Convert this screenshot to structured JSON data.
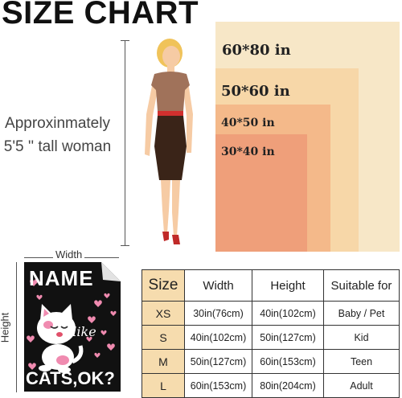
{
  "title": "SIZE CHART",
  "sizes_visual": [
    "60*80 in",
    "50*60 in",
    "40*50 in",
    "30*40 in"
  ],
  "woman_note": [
    "Approxinmately",
    "5'5 '' tall woman"
  ],
  "dimension_labels": {
    "width": "Width",
    "height": "Height"
  },
  "blanket_text": {
    "line1": "NAME",
    "line2": "like",
    "line3": "CATS,OK?"
  },
  "table": {
    "headers": [
      "Size",
      "Width",
      "Height",
      "Suitable for"
    ],
    "rows": [
      [
        "XS",
        "30in(76cm)",
        "40in(102cm)",
        "Baby / Pet"
      ],
      [
        "S",
        "40in(102cm)",
        "50in(127cm)",
        "Kid"
      ],
      [
        "M",
        "50in(127cm)",
        "60in(153cm)",
        "Teen"
      ],
      [
        "L",
        "60in(153cm)",
        "80in(204cm)",
        "Adult"
      ]
    ]
  },
  "colors": {
    "rect_xl": "#f7e7c7",
    "rect_l": "#f7d7a8",
    "rect_m": "#f4b98a",
    "rect_s": "#ef9f7a",
    "size_column": "#f6dcae",
    "blanket_bg": "#111111",
    "heart": "#f08bb0"
  }
}
